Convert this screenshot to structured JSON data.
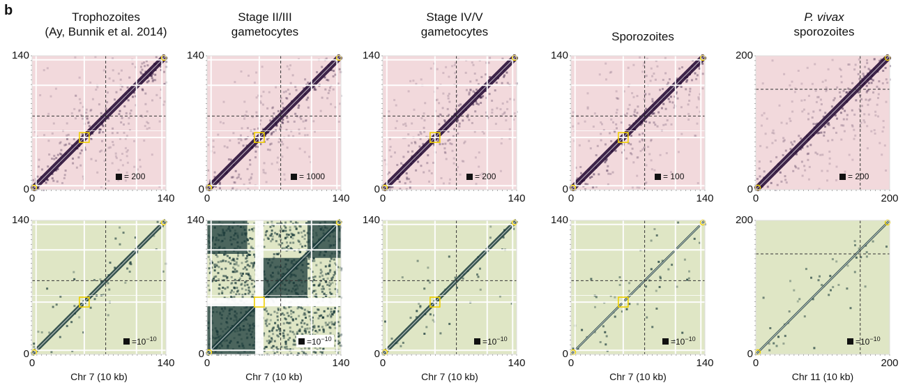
{
  "panel_letter": "b",
  "colors": {
    "top_bg": "#f2d9dc",
    "top_dark": "#2a1038",
    "bottom_bg": "#dfe6c5",
    "bottom_dark": "#1a3a3a",
    "highlight": "#f0d000",
    "grid": "#ffffff",
    "dashed": "#333333"
  },
  "columns": [
    {
      "title_line1": "Trophozoites",
      "title_line2": "(Ay, Bunnik et al. 2014)",
      "title_line1_italic": false,
      "axis_max": "140",
      "axis_min": "0",
      "xlabel": "Chr 7 (10 kb)",
      "top_legend": "= 200",
      "bottom_legend": "=10",
      "bottom_legend_exp": "−10"
    },
    {
      "title_line1": "Stage II/III",
      "title_line2": "gametocytes",
      "title_line1_italic": false,
      "axis_max": "140",
      "axis_min": "0",
      "xlabel": "Chr 7 (10 kb)",
      "top_legend": "= 1000",
      "bottom_legend": "=10",
      "bottom_legend_exp": "−10"
    },
    {
      "title_line1": "Stage IV/V",
      "title_line2": "gametocytes",
      "title_line1_italic": false,
      "axis_max": "140",
      "axis_min": "0",
      "xlabel": "Chr 7 (10 kb)",
      "top_legend": "= 200",
      "bottom_legend": "=10",
      "bottom_legend_exp": "−10"
    },
    {
      "title_line1": "Sporozoites",
      "title_line2": "",
      "title_line1_italic": false,
      "axis_max": "140",
      "axis_min": "0",
      "xlabel": "Chr 7 (10 kb)",
      "top_legend": "= 100",
      "bottom_legend": "=10",
      "bottom_legend_exp": "−10"
    },
    {
      "title_line1": "P. vivax",
      "title_line2": "sporozoites",
      "title_line1_italic": true,
      "axis_max": "200",
      "axis_min": "0",
      "xlabel": "Chr 11 (10 kb)",
      "top_legend": "= 200",
      "bottom_legend": "=10",
      "bottom_legend_exp": "−10"
    }
  ]
}
